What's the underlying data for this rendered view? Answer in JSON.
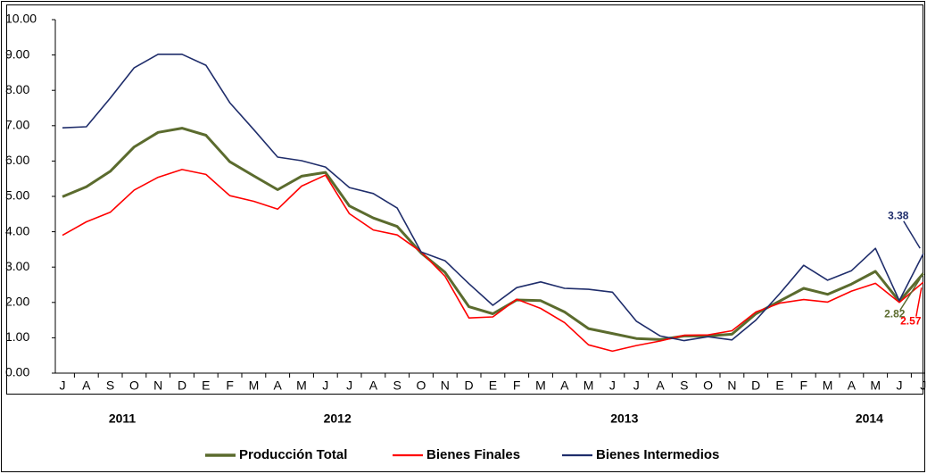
{
  "chart_data": {
    "type": "line",
    "categories": [
      "J",
      "A",
      "S",
      "O",
      "N",
      "D",
      "E",
      "F",
      "M",
      "A",
      "M",
      "J",
      "J",
      "A",
      "S",
      "O",
      "N",
      "D",
      "E",
      "F",
      "M",
      "A",
      "M",
      "J",
      "J",
      "A",
      "S",
      "O",
      "N",
      "D",
      "E",
      "F",
      "M",
      "A",
      "M",
      "J",
      "J"
    ],
    "year_groups": [
      {
        "label": "2011",
        "count": 6
      },
      {
        "label": "2012",
        "count": 12
      },
      {
        "label": "2013",
        "count": 12
      },
      {
        "label": "2014",
        "count": 7
      }
    ],
    "series": [
      {
        "name": "Producción Total",
        "color": "#5b6b2e",
        "width": 3,
        "values": [
          4.99,
          5.27,
          5.71,
          6.4,
          6.81,
          6.93,
          6.73,
          5.98,
          5.58,
          5.19,
          5.57,
          5.68,
          4.73,
          4.39,
          4.15,
          3.4,
          2.85,
          1.88,
          1.68,
          2.07,
          2.05,
          1.73,
          1.26,
          1.12,
          0.98,
          0.95,
          1.05,
          1.05,
          1.1,
          1.68,
          2.04,
          2.4,
          2.23,
          2.52,
          2.88,
          2.03,
          2.82
        ]
      },
      {
        "name": "Bienes Finales",
        "color": "#ff0000",
        "width": 1.6,
        "values": [
          3.9,
          4.28,
          4.55,
          5.18,
          5.54,
          5.76,
          5.62,
          5.02,
          4.86,
          4.64,
          5.29,
          5.6,
          4.51,
          4.05,
          3.91,
          3.43,
          2.74,
          1.56,
          1.59,
          2.09,
          1.83,
          1.43,
          0.8,
          0.62,
          0.78,
          0.91,
          1.07,
          1.08,
          1.2,
          1.73,
          1.98,
          2.08,
          2.01,
          2.32,
          2.54,
          2.0,
          2.57
        ]
      },
      {
        "name": "Bienes Intermedios",
        "color": "#1f2d6b",
        "width": 1.6,
        "values": [
          6.94,
          6.97,
          7.78,
          8.64,
          9.02,
          9.02,
          8.71,
          7.65,
          6.89,
          6.11,
          6.01,
          5.83,
          5.25,
          5.08,
          4.67,
          3.43,
          3.18,
          2.53,
          1.92,
          2.42,
          2.58,
          2.4,
          2.37,
          2.29,
          1.47,
          1.05,
          0.92,
          1.03,
          0.94,
          1.5,
          2.25,
          3.05,
          2.63,
          2.9,
          3.53,
          2.05,
          3.38
        ]
      }
    ],
    "label_last": true,
    "ylim": [
      0,
      10
    ],
    "yticks": [
      {
        "value": 0,
        "label": "0.00"
      },
      {
        "value": 1,
        "label": "1.00"
      },
      {
        "value": 2,
        "label": "2.00"
      },
      {
        "value": 3,
        "label": "3.00"
      },
      {
        "value": 4,
        "label": "4.00"
      },
      {
        "value": 5,
        "label": "5.00"
      },
      {
        "value": 6,
        "label": "6.00"
      },
      {
        "value": 7,
        "label": "7.00"
      },
      {
        "value": 8,
        "label": "8.00"
      },
      {
        "value": 9,
        "label": "9.00"
      },
      {
        "value": 10,
        "label": "10.00"
      }
    ],
    "legend": "bottom"
  }
}
